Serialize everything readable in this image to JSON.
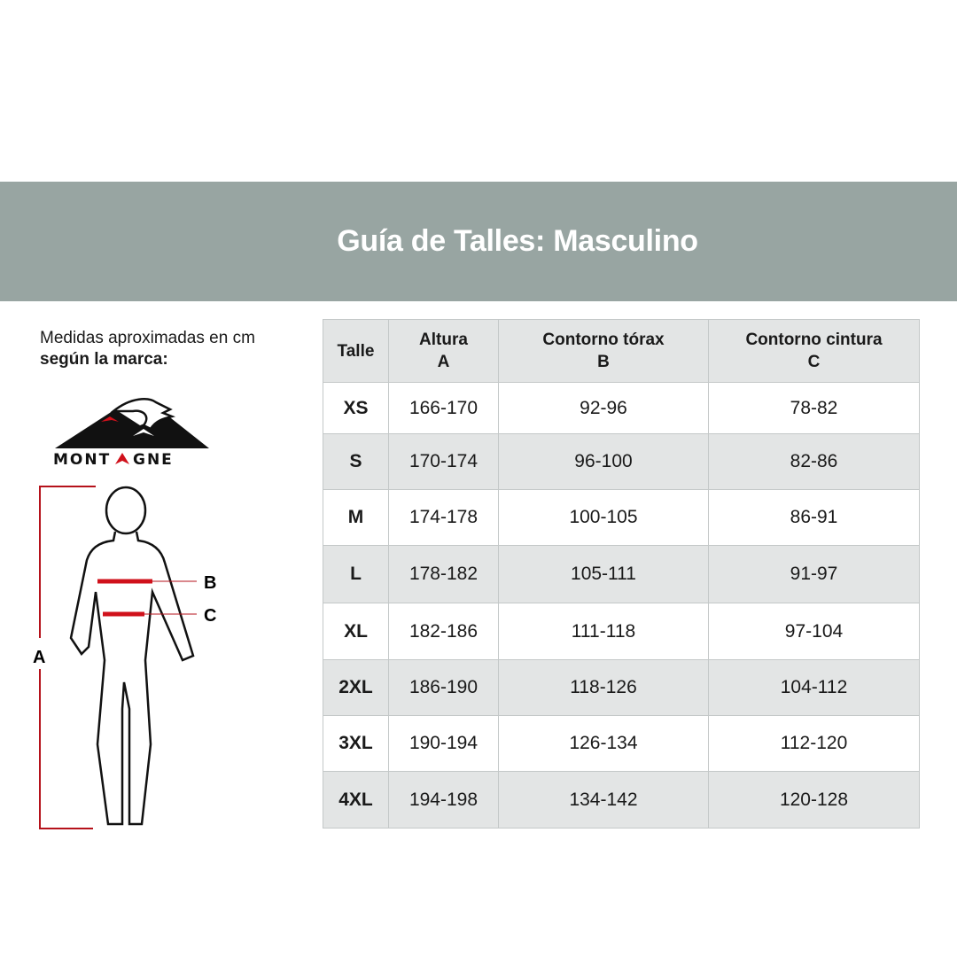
{
  "title": "Guía de Talles: Masculino",
  "intro": {
    "line1": "Medidas aproximadas en cm",
    "line2": "según la marca:"
  },
  "logo": {
    "text": "MONTAGNE"
  },
  "figure_labels": {
    "a": "A",
    "b": "B",
    "c": "C"
  },
  "colors": {
    "banner": "#98a5a2",
    "measure": "#d0111b",
    "row_alt": "#e3e5e5"
  },
  "table": {
    "headers": [
      {
        "title": "Talle",
        "sub": ""
      },
      {
        "title": "Altura",
        "sub": "A"
      },
      {
        "title": "Contorno tórax",
        "sub": "B"
      },
      {
        "title": "Contorno cintura",
        "sub": "C"
      }
    ],
    "rows": [
      [
        "XS",
        "166-170",
        "92-96",
        "78-82"
      ],
      [
        "S",
        "170-174",
        "96-100",
        "82-86"
      ],
      [
        "M",
        "174-178",
        "100-105",
        "86-91"
      ],
      [
        "L",
        "178-182",
        "105-111",
        "91-97"
      ],
      [
        "XL",
        "182-186",
        "111-118",
        "97-104"
      ],
      [
        "2XL",
        "186-190",
        "118-126",
        "104-112"
      ],
      [
        "3XL",
        "190-194",
        "126-134",
        "112-120"
      ],
      [
        "4XL",
        "194-198",
        "134-142",
        "120-128"
      ]
    ]
  }
}
